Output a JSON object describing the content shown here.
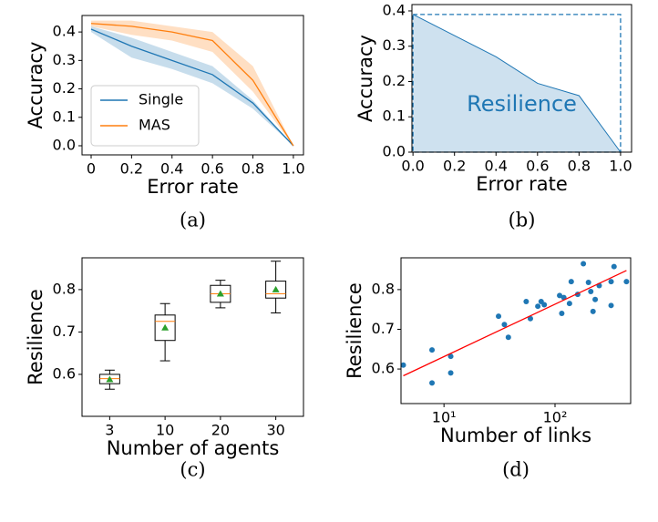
{
  "chart_data": [
    {
      "type": "line",
      "caption": "(a)",
      "xlabel": "Error rate",
      "ylabel": "Accuracy",
      "x": [
        0,
        0.2,
        0.4,
        0.6,
        0.8,
        1.0
      ],
      "xlim": [
        -0.045,
        1.05
      ],
      "ylim": [
        -0.032,
        0.458
      ],
      "xticks": [
        0,
        0.2,
        0.4,
        0.6,
        0.8,
        {
          "value": 1,
          "label": "1.0"
        }
      ],
      "yticks": [
        {
          "value": 0,
          "label": "0.0"
        },
        0.1,
        0.2,
        0.3,
        0.4
      ],
      "legend": "lower left",
      "series": [
        {
          "name": "Single",
          "color": "#1f77b4",
          "values": [
            0.41,
            0.35,
            0.3,
            0.25,
            0.15,
            0.0
          ],
          "band_lower": [
            0.4,
            0.31,
            0.27,
            0.22,
            0.13,
            0.0
          ],
          "band_upper": [
            0.42,
            0.38,
            0.33,
            0.28,
            0.16,
            0.0
          ]
        },
        {
          "name": "MAS",
          "color": "#ff7f0e",
          "values": [
            0.43,
            0.42,
            0.4,
            0.37,
            0.23,
            0.0
          ],
          "band_lower": [
            0.42,
            0.39,
            0.37,
            0.33,
            0.19,
            0.0
          ],
          "band_upper": [
            0.44,
            0.44,
            0.42,
            0.4,
            0.28,
            0.0
          ]
        }
      ]
    },
    {
      "type": "area",
      "caption": "(b)",
      "xlabel": "Error rate",
      "ylabel": "Accuracy",
      "x": [
        0,
        0.2,
        0.4,
        0.6,
        0.8,
        1.0
      ],
      "values": [
        0.39,
        0.33,
        0.27,
        0.195,
        0.16,
        0.0
      ],
      "color": "#1f77b4",
      "xlim": [
        -0.005,
        1.053
      ],
      "ylim": [
        0,
        0.418
      ],
      "xticks": [
        {
          "value": 0,
          "label": "0.0"
        },
        0.2,
        0.4,
        0.6,
        0.8,
        {
          "value": 1,
          "label": "1.0"
        }
      ],
      "yticks": [
        {
          "value": 0,
          "label": "0.0"
        },
        0.1,
        0.2,
        0.3,
        0.4
      ],
      "annotation": "Resilience",
      "reference": {
        "x": [
          0,
          1
        ],
        "y": 0.39
      }
    },
    {
      "type": "box",
      "caption": "(c)",
      "xlabel": "Number of agents",
      "ylabel": "Resilience",
      "categories": [
        "3",
        "10",
        "20",
        "30"
      ],
      "whislo": [
        0.565,
        0.632,
        0.757,
        0.745
      ],
      "q1": [
        0.578,
        0.68,
        0.77,
        0.78
      ],
      "med": [
        0.59,
        0.725,
        0.79,
        0.79
      ],
      "q3": [
        0.6,
        0.74,
        0.81,
        0.82
      ],
      "whishi": [
        0.61,
        0.767,
        0.822,
        0.867
      ],
      "mean": [
        0.588,
        0.71,
        0.79,
        0.8
      ],
      "box_color": "#000000",
      "median_color": "#ff7f0e",
      "mean_color": "#2ca02c",
      "ylim": [
        0.501,
        0.875
      ],
      "yticks": [
        0.6,
        0.7,
        0.8
      ]
    },
    {
      "type": "scatter",
      "caption": "(d)",
      "xlabel": "Number of links",
      "ylabel": "Resilience",
      "xscale": "log",
      "x": [
        4.3,
        7.8,
        7.8,
        11.5,
        11.5,
        31,
        35,
        38,
        55,
        60,
        70,
        75,
        80,
        110,
        115,
        120,
        135,
        140,
        160,
        180,
        200,
        210,
        220,
        230,
        250,
        320,
        320,
        340,
        440
      ],
      "values": [
        0.61,
        0.648,
        0.565,
        0.632,
        0.59,
        0.733,
        0.712,
        0.68,
        0.77,
        0.727,
        0.758,
        0.77,
        0.762,
        0.785,
        0.74,
        0.78,
        0.765,
        0.82,
        0.788,
        0.865,
        0.818,
        0.795,
        0.745,
        0.775,
        0.81,
        0.82,
        0.76,
        0.858,
        0.82
      ],
      "color": "#1f77b4",
      "fit": {
        "x": [
          4.3,
          440
        ],
        "values": [
          0.583,
          0.848
        ],
        "color": "#ff0000"
      },
      "xlim": [
        4.1,
        480
      ],
      "ylim": [
        0.513,
        0.88
      ],
      "xticks": [
        {
          "value": 10,
          "label": "10¹"
        },
        {
          "value": 100,
          "label": "10²"
        }
      ],
      "yticks": [
        0.6,
        0.7,
        0.8
      ]
    }
  ]
}
